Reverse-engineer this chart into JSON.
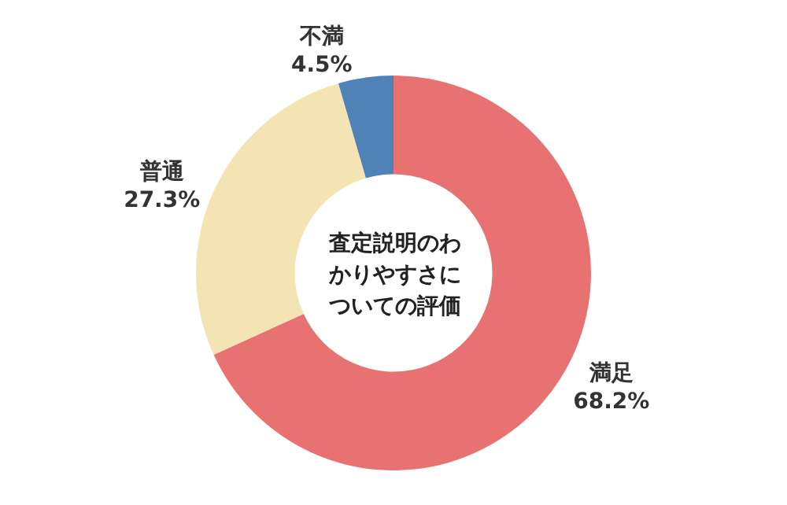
{
  "chart_data": {
    "type": "donut",
    "title": "査定説明のわかりやすさについての評価",
    "categories": [
      "満足",
      "普通",
      "不満"
    ],
    "values": [
      68.2,
      27.3,
      4.5
    ],
    "value_labels": [
      "68.2%",
      "27.3%",
      "4.5%"
    ],
    "colors": [
      "#e87272",
      "#f4e4b4",
      "#4f82b6"
    ],
    "legend": false
  }
}
